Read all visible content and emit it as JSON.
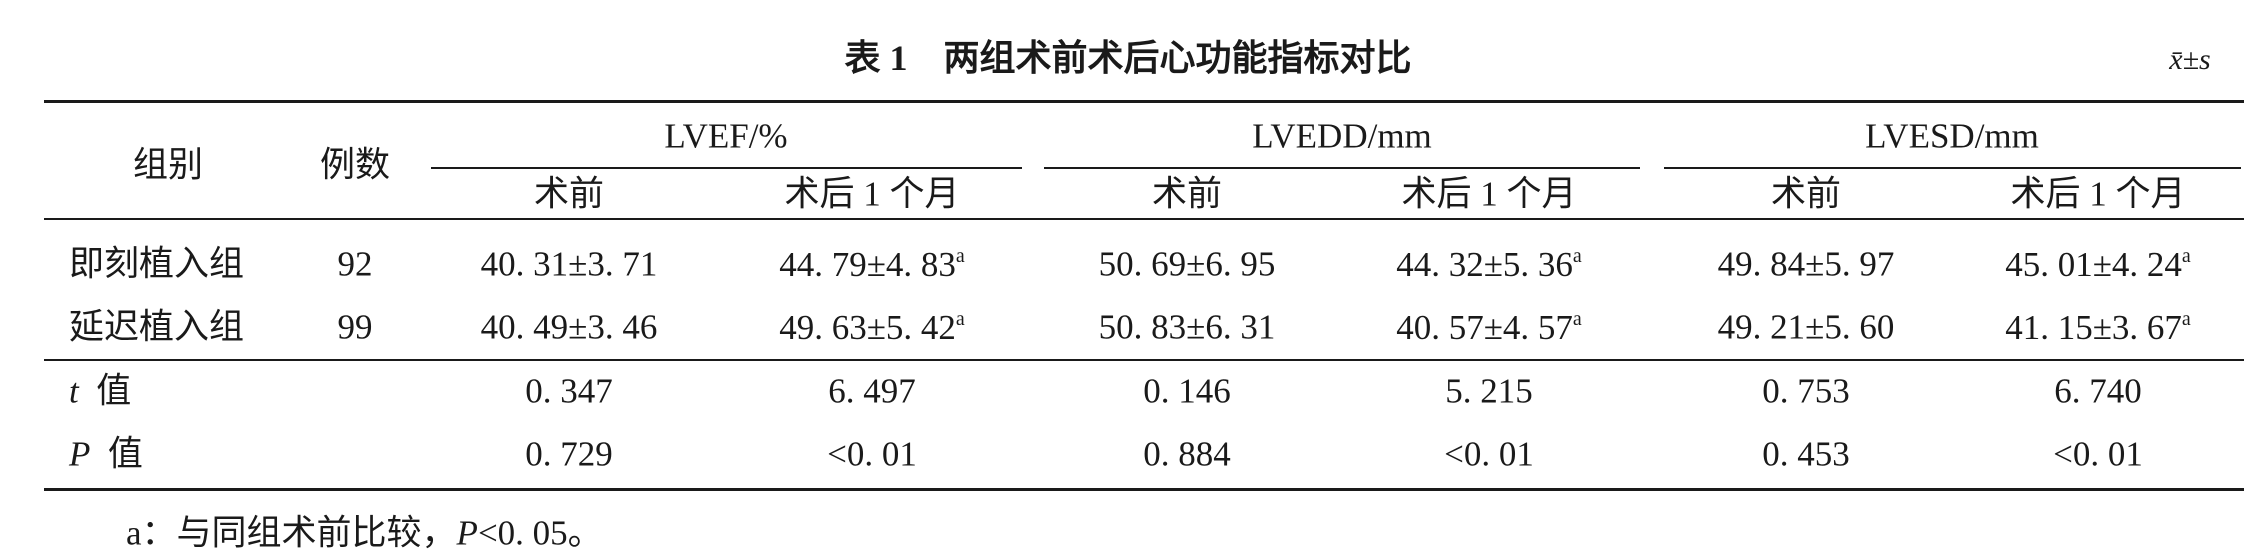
{
  "title": "表 1　两组术前术后心功能指标对比",
  "note": "x̄±s",
  "table": {
    "header": {
      "group": "组别",
      "count": "例数",
      "metrics": [
        "LVEF/%",
        "LVEDD/mm",
        "LVESD/mm"
      ],
      "sub": [
        "术前",
        "术后 1 个月",
        "术前",
        "术后 1 个月",
        "术前",
        "术后 1 个月"
      ]
    },
    "rows": [
      {
        "label": "即刻植入组",
        "count": "92",
        "cells": [
          {
            "text": "40. 31±3. 71"
          },
          {
            "text": "44. 79±4. 83",
            "sup": "a"
          },
          {
            "text": "50. 69±6. 95"
          },
          {
            "text": "44. 32±5. 36",
            "sup": "a"
          },
          {
            "text": "49. 84±5. 97"
          },
          {
            "text": "45. 01±4. 24",
            "sup": "a"
          }
        ]
      },
      {
        "label": "延迟植入组",
        "count": "99",
        "cells": [
          {
            "text": "40. 49±3. 46"
          },
          {
            "text": "49. 63±5. 42",
            "sup": "a"
          },
          {
            "text": "50. 83±6. 31"
          },
          {
            "text": "40. 57±4. 57",
            "sup": "a"
          },
          {
            "text": "49. 21±5. 60"
          },
          {
            "text": "41. 15±3. 67",
            "sup": "a"
          }
        ]
      },
      {
        "var": "t",
        "label": "值",
        "cells": [
          {
            "text": "0. 347"
          },
          {
            "text": "6. 497"
          },
          {
            "text": "0. 146"
          },
          {
            "text": "5. 215"
          },
          {
            "text": "0. 753"
          },
          {
            "text": "6. 740"
          }
        ]
      },
      {
        "var": "P",
        "label": "值",
        "cells": [
          {
            "text": "0. 729"
          },
          {
            "text": "<0. 01"
          },
          {
            "text": "0. 884"
          },
          {
            "text": "<0. 01"
          },
          {
            "text": "0. 453"
          },
          {
            "text": "<0. 01"
          }
        ]
      }
    ]
  },
  "footnote": [
    "a：与同组术前比较，",
    "P",
    "<0. 05。"
  ]
}
